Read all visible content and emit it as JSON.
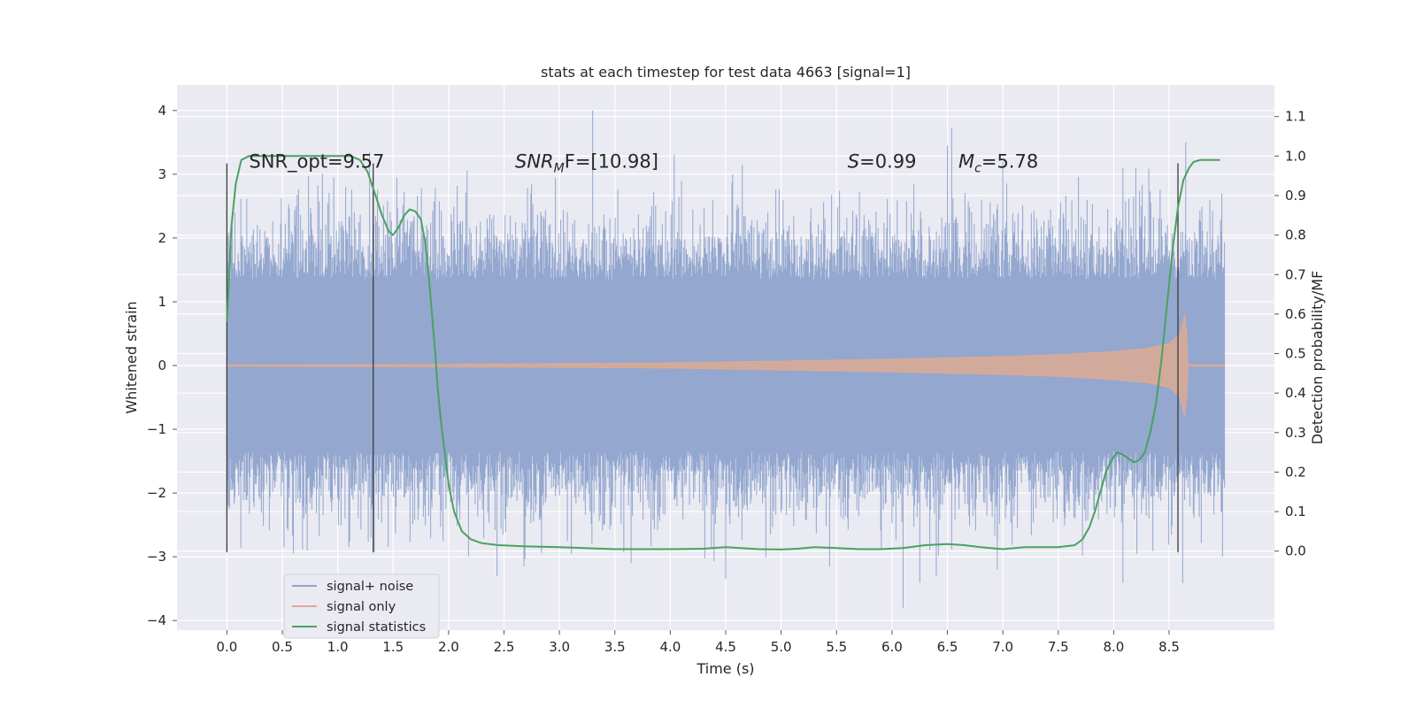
{
  "chart_data": {
    "type": "line",
    "title": "stats at each timestep for test data 4663 [signal=1]",
    "xlabel": "Time (s)",
    "ylabel": "Whitened strain",
    "y2label": "Detection probability/MF",
    "xlim": [
      -0.45,
      9.45
    ],
    "ylim": [
      -4.15,
      4.4
    ],
    "y2lim": [
      -0.2,
      1.18
    ],
    "x_ticks": [
      "0.0",
      "0.5",
      "1.0",
      "1.5",
      "2.0",
      "2.5",
      "3.0",
      "3.5",
      "4.0",
      "4.5",
      "5.0",
      "5.5",
      "6.0",
      "6.5",
      "7.0",
      "7.5",
      "8.0",
      "8.5"
    ],
    "y_ticks": [
      "4",
      "3",
      "2",
      "1",
      "0",
      "−1",
      "−2",
      "−3",
      "−4"
    ],
    "y2_ticks": [
      "1.1",
      "1.0",
      "0.9",
      "0.8",
      "0.7",
      "0.6",
      "0.5",
      "0.4",
      "0.3",
      "0.2",
      "0.1",
      "0.0"
    ],
    "grid": true,
    "legend_position": "lower-left",
    "annotations": [
      {
        "label": "SNR_opt=9.57",
        "x": 0.2,
        "y": 3.2
      },
      {
        "label": "SNR",
        "sub": "M",
        "rest": "F=[10.98]",
        "x": 2.6,
        "y": 3.2
      },
      {
        "label": "S",
        "rest": "=0.99",
        "x": 5.6,
        "y": 3.2
      },
      {
        "label": "M",
        "sub": "c",
        "rest": "=5.78",
        "x": 6.6,
        "y": 3.2
      }
    ],
    "vlines": [
      0.0,
      1.32,
      8.58
    ],
    "series": [
      {
        "name": "signal+ noise",
        "color": "#8ea3cc",
        "axis": "left",
        "x_range": [
          0.0,
          9.0
        ],
        "typical_band": [
          -1.35,
          1.35
        ],
        "peaks": [
          {
            "x": 0.02,
            "y": -2.25
          },
          {
            "x": 0.6,
            "y": -2.95
          },
          {
            "x": 1.1,
            "y": -2.85
          },
          {
            "x": 1.3,
            "y": -2.7
          },
          {
            "x": 1.95,
            "y": -2.75
          },
          {
            "x": 2.68,
            "y": -3.15
          },
          {
            "x": 3.3,
            "y": 4.0
          },
          {
            "x": 3.4,
            "y": -2.5
          },
          {
            "x": 4.5,
            "y": -3.35
          },
          {
            "x": 4.65,
            "y": 3.15
          },
          {
            "x": 6.1,
            "y": -3.8
          },
          {
            "x": 6.4,
            "y": -3.3
          },
          {
            "x": 6.5,
            "y": 3.45
          },
          {
            "x": 6.95,
            "y": -3.2
          },
          {
            "x": 7.0,
            "y": 3.2
          },
          {
            "x": 8.2,
            "y": 3.1
          },
          {
            "x": 8.65,
            "y": 3.5
          }
        ]
      },
      {
        "name": "signal only",
        "color": "#ddaa93",
        "axis": "left",
        "x": [
          0.0,
          2.0,
          4.0,
          5.0,
          6.0,
          7.0,
          7.5,
          8.0,
          8.3,
          8.5,
          8.6,
          8.64,
          8.66,
          8.67,
          9.0
        ],
        "envelope": [
          0.01,
          0.02,
          0.04,
          0.07,
          0.1,
          0.14,
          0.17,
          0.22,
          0.27,
          0.34,
          0.5,
          0.8,
          0.5,
          0.01,
          0.01
        ]
      },
      {
        "name": "signal statistics",
        "color": "#4aa160",
        "axis": "right",
        "x": [
          0.0,
          0.04,
          0.08,
          0.13,
          0.2,
          0.3,
          0.5,
          0.8,
          1.0,
          1.12,
          1.2,
          1.27,
          1.33,
          1.4,
          1.46,
          1.5,
          1.55,
          1.6,
          1.65,
          1.7,
          1.75,
          1.79,
          1.82,
          1.85,
          1.88,
          1.9,
          1.93,
          1.97,
          2.0,
          2.05,
          2.12,
          2.2,
          2.3,
          2.45,
          2.7,
          3.0,
          3.5,
          4.0,
          4.3,
          4.5,
          4.8,
          5.0,
          5.15,
          5.3,
          5.5,
          5.7,
          5.9,
          6.1,
          6.3,
          6.5,
          6.65,
          6.8,
          7.0,
          7.2,
          7.5,
          7.65,
          7.72,
          7.78,
          7.83,
          7.88,
          7.93,
          7.98,
          8.03,
          8.08,
          8.13,
          8.18,
          8.23,
          8.28,
          8.33,
          8.38,
          8.43,
          8.48,
          8.53,
          8.58,
          8.63,
          8.68,
          8.72,
          8.78,
          8.85,
          8.9,
          8.96
        ],
        "values": [
          0.58,
          0.82,
          0.93,
          0.99,
          1.0,
          1.0,
          1.0,
          1.0,
          1.0,
          1.0,
          0.99,
          0.96,
          0.91,
          0.85,
          0.81,
          0.8,
          0.82,
          0.85,
          0.865,
          0.86,
          0.84,
          0.78,
          0.7,
          0.6,
          0.5,
          0.42,
          0.33,
          0.24,
          0.17,
          0.1,
          0.05,
          0.03,
          0.02,
          0.015,
          0.012,
          0.01,
          0.005,
          0.005,
          0.006,
          0.01,
          0.005,
          0.004,
          0.006,
          0.01,
          0.008,
          0.005,
          0.005,
          0.008,
          0.015,
          0.018,
          0.015,
          0.01,
          0.005,
          0.01,
          0.01,
          0.015,
          0.03,
          0.06,
          0.1,
          0.15,
          0.2,
          0.23,
          0.25,
          0.245,
          0.235,
          0.225,
          0.23,
          0.25,
          0.3,
          0.37,
          0.48,
          0.62,
          0.76,
          0.87,
          0.94,
          0.97,
          0.985,
          0.99,
          0.99,
          0.99,
          0.99
        ]
      }
    ]
  }
}
